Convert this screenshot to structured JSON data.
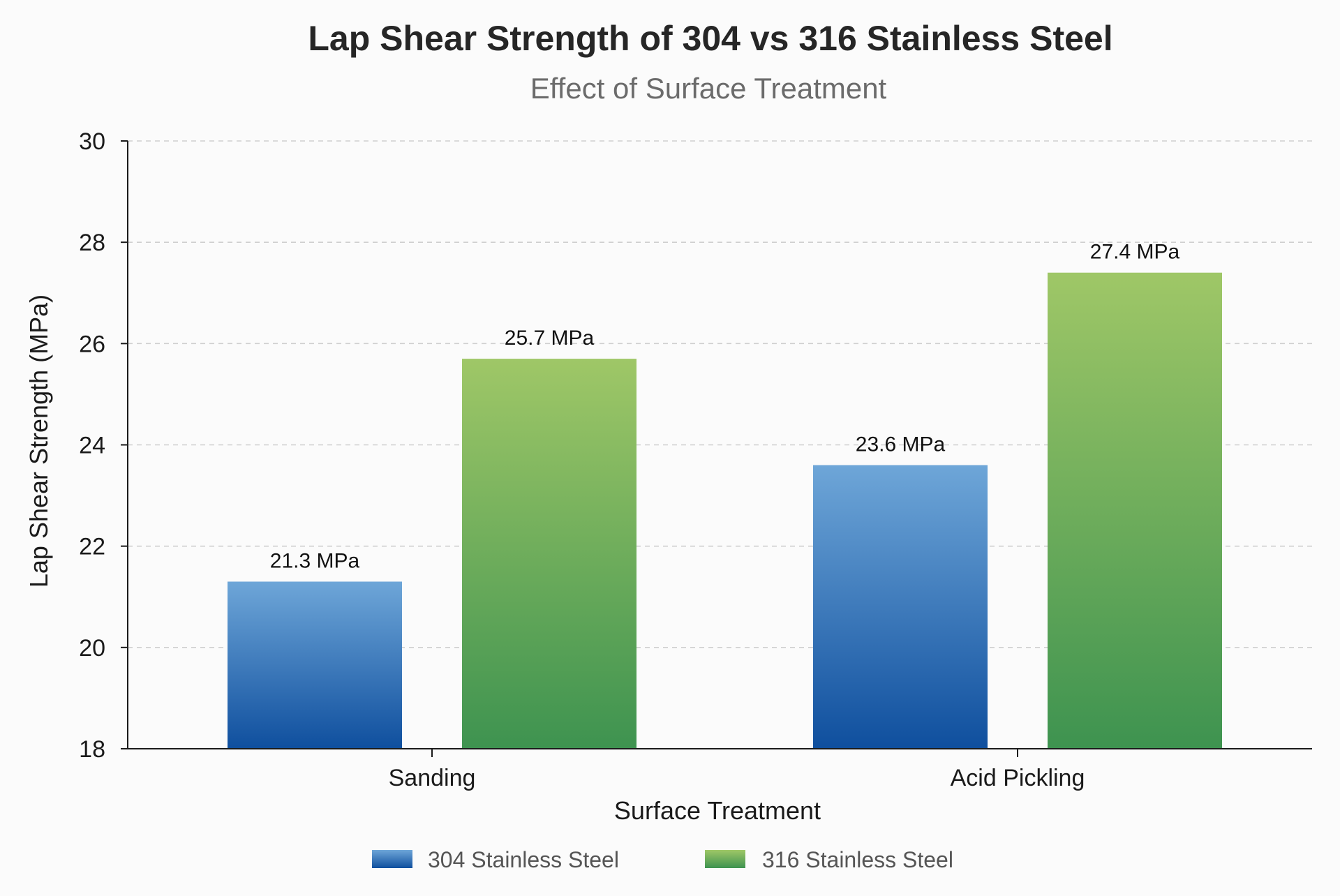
{
  "colors": {
    "series_304_top": "#6ea6d8",
    "series_304_bottom": "#0f4f9e",
    "series_316_top": "#9fc767",
    "series_316_bottom": "#3e9350"
  },
  "chart_data": {
    "type": "bar",
    "title": "Lap Shear Strength of 304 vs 316 Stainless Steel",
    "subtitle": "Effect of Surface Treatment",
    "xlabel": "Surface Treatment",
    "ylabel": "Lap Shear Strength (MPa)",
    "categories": [
      "Sanding",
      "Acid Pickling"
    ],
    "series": [
      {
        "name": "304 Stainless Steel",
        "values": [
          21.3,
          23.6
        ],
        "value_labels": [
          "21.3 MPa",
          "23.6 MPa"
        ]
      },
      {
        "name": "316 Stainless Steel",
        "values": [
          25.7,
          27.4
        ],
        "value_labels": [
          "25.7 MPa",
          "27.4 MPa"
        ]
      }
    ],
    "ylim": [
      18,
      30
    ],
    "yticks": [
      18,
      20,
      22,
      24,
      26,
      28,
      30
    ],
    "grid": true,
    "grid_style": "dashed horizontal",
    "legend_position": "bottom-center"
  }
}
